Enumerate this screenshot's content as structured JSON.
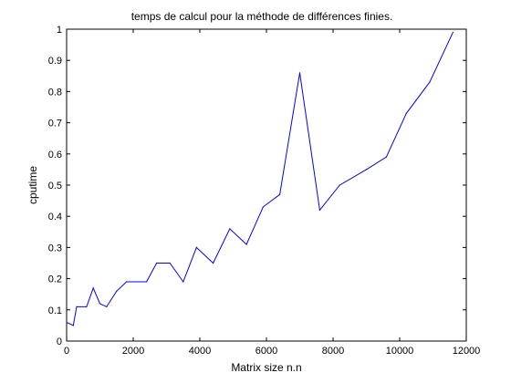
{
  "chart_data": {
    "type": "line",
    "title": "temps de calcul pour la méthode de différences finies.",
    "xlabel": "Matrix size n.n",
    "ylabel": "cputime",
    "xlim": [
      0,
      12000
    ],
    "ylim": [
      0,
      1
    ],
    "xticks": [
      0,
      2000,
      4000,
      6000,
      8000,
      10000,
      12000
    ],
    "xtick_labels": [
      "0",
      "2000",
      "4000",
      "6000",
      "8000",
      "10000",
      "12000"
    ],
    "yticks": [
      0,
      0.1,
      0.2,
      0.3,
      0.4,
      0.5,
      0.6,
      0.7,
      0.8,
      0.9,
      1
    ],
    "ytick_labels": [
      "0",
      "0.1",
      "0.2",
      "0.3",
      "0.4",
      "0.5",
      "0.6",
      "0.7",
      "0.8",
      "0.9",
      "1"
    ],
    "grid": false,
    "line_color": "#0000ff",
    "series": [
      {
        "x": [
          0,
          200,
          300,
          600,
          800,
          1000,
          1200,
          1500,
          1800,
          2400,
          2700,
          3100,
          3500,
          3900,
          4400,
          4900,
          5400,
          5900,
          6400,
          7000,
          7600,
          8200,
          9000,
          9600,
          10200,
          10900,
          11600
        ],
        "y": [
          0.06,
          0.05,
          0.11,
          0.11,
          0.17,
          0.12,
          0.11,
          0.16,
          0.19,
          0.19,
          0.25,
          0.25,
          0.19,
          0.3,
          0.25,
          0.36,
          0.31,
          0.43,
          0.47,
          0.86,
          0.42,
          0.5,
          0.55,
          0.59,
          0.73,
          0.83,
          0.99
        ]
      }
    ]
  }
}
